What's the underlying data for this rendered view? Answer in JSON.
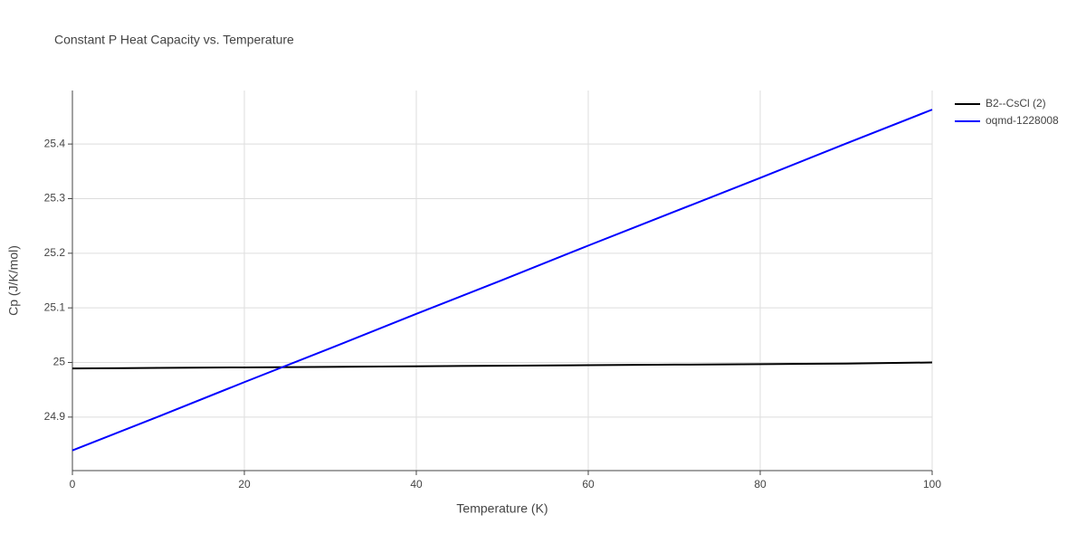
{
  "chart_data": {
    "type": "line",
    "title": "Constant P Heat Capacity vs. Temperature",
    "x_label": "Temperature (K)",
    "y_label": "Cp (J/K/mol)",
    "x": [
      0,
      10,
      20,
      30,
      40,
      50,
      60,
      70,
      80,
      90,
      100
    ],
    "series": [
      {
        "name": "B2--CsCl (2)",
        "color": "#000000",
        "values": [
          24.989,
          24.99,
          24.991,
          24.992,
          24.993,
          24.994,
          24.995,
          24.996,
          24.997,
          24.998,
          25.0
        ]
      },
      {
        "name": "oqmd-1228008",
        "color": "#0000ff",
        "values": [
          24.839,
          24.901,
          24.964,
          25.026,
          25.089,
          25.151,
          25.214,
          25.276,
          25.338,
          25.401,
          25.463
        ]
      }
    ],
    "xlim": [
      0,
      100
    ],
    "xticks": [
      0,
      20,
      40,
      60,
      80,
      100
    ],
    "ylim": [
      24.802,
      25.498
    ],
    "yticks": [
      24.9,
      25,
      25.1,
      25.2,
      25.3,
      25.4
    ],
    "grid": true,
    "legend": "right"
  }
}
